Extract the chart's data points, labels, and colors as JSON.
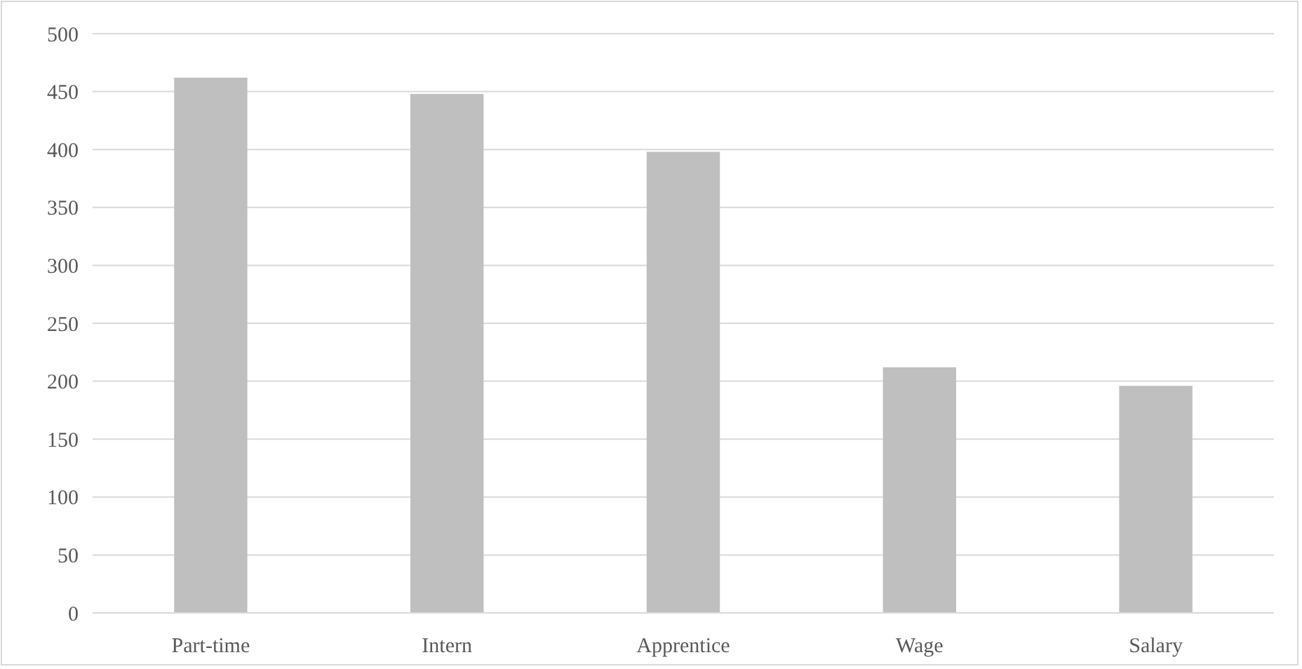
{
  "chart_data": {
    "type": "bar",
    "categories": [
      "Part-time",
      "Intern",
      "Apprentice",
      "Wage",
      "Salary"
    ],
    "values": [
      462,
      448,
      398,
      212,
      196
    ],
    "color": "#bfbfbf",
    "ylim": [
      0,
      500
    ],
    "yticks": [
      0,
      50,
      100,
      150,
      200,
      250,
      300,
      350,
      400,
      450,
      500
    ],
    "grid": "y"
  }
}
